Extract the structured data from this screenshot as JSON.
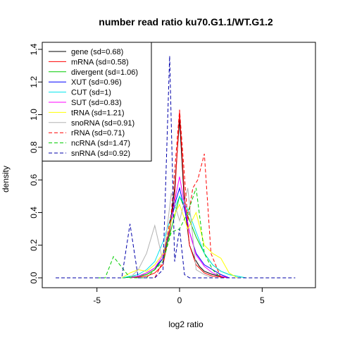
{
  "chart_data": {
    "type": "line",
    "title": "number read ratio ku70.G1.1/WT.G1.2",
    "xlabel": "log2 ratio",
    "ylabel": "density",
    "xlim": [
      -7.5,
      7.5
    ],
    "ylim": [
      0,
      1.4
    ],
    "x_ticks": [
      -5,
      0,
      5
    ],
    "y_ticks": [
      0.0,
      0.2,
      0.4,
      0.6,
      0.8,
      1.0,
      1.2,
      1.4
    ],
    "x_tick_labels": [
      "-5",
      "0",
      "5"
    ],
    "y_tick_labels": [
      "0.0",
      "0.2",
      "0.4",
      "0.6",
      "0.8",
      "1.0",
      "1.2",
      "1.4"
    ],
    "grid": false,
    "legend_position": "top-left",
    "series": [
      {
        "name": "gene (sd=0.68)",
        "color": "#000000",
        "dash": "solid",
        "x": [
          -3.4,
          -2.5,
          -2.0,
          -1.5,
          -1.0,
          -0.6,
          -0.3,
          0.0,
          0.3,
          0.6,
          0.9,
          1.2,
          1.5,
          2.0,
          2.5,
          3.0
        ],
        "y": [
          0.0,
          0.01,
          0.02,
          0.05,
          0.12,
          0.3,
          0.55,
          0.97,
          0.45,
          0.2,
          0.12,
          0.07,
          0.04,
          0.02,
          0.01,
          0.0
        ]
      },
      {
        "name": "mRNA (sd=0.58)",
        "color": "#ff0000",
        "dash": "solid",
        "x": [
          -3.0,
          -2.0,
          -1.5,
          -1.0,
          -0.6,
          -0.3,
          0.0,
          0.3,
          0.6,
          1.0,
          1.5,
          2.0,
          2.5,
          3.0
        ],
        "y": [
          0.0,
          0.01,
          0.03,
          0.08,
          0.28,
          0.5,
          1.02,
          0.5,
          0.2,
          0.08,
          0.03,
          0.01,
          0.005,
          0.0
        ]
      },
      {
        "name": "divergent (sd=1.06)",
        "color": "#00cc00",
        "dash": "solid",
        "x": [
          -3.5,
          -2.5,
          -2.0,
          -1.5,
          -1.0,
          -0.5,
          0.0,
          0.5,
          1.0,
          1.5,
          2.0,
          2.5,
          3.0,
          3.5,
          4.0
        ],
        "y": [
          0.0,
          0.01,
          0.02,
          0.05,
          0.12,
          0.3,
          0.5,
          0.38,
          0.25,
          0.15,
          0.08,
          0.04,
          0.02,
          0.01,
          0.0
        ]
      },
      {
        "name": "XUT (sd=0.96)",
        "color": "#0000ff",
        "dash": "solid",
        "x": [
          -3.0,
          -2.5,
          -2.0,
          -1.5,
          -1.0,
          -0.6,
          -0.3,
          0.0,
          0.3,
          0.6,
          1.0,
          1.5,
          2.0,
          2.5,
          3.0
        ],
        "y": [
          0.0,
          0.01,
          0.03,
          0.06,
          0.12,
          0.3,
          0.45,
          0.55,
          0.42,
          0.28,
          0.15,
          0.08,
          0.05,
          0.02,
          0.0
        ]
      },
      {
        "name": "CUT (sd=1)",
        "color": "#00e5ee",
        "dash": "solid",
        "x": [
          -3.5,
          -3.0,
          -2.5,
          -2.0,
          -1.5,
          -1.0,
          -0.5,
          0.0,
          0.5,
          1.0,
          1.5,
          2.0,
          2.5,
          3.0,
          3.5,
          4.0
        ],
        "y": [
          0.0,
          0.01,
          0.02,
          0.05,
          0.1,
          0.22,
          0.38,
          0.5,
          0.42,
          0.28,
          0.15,
          0.08,
          0.04,
          0.02,
          0.01,
          0.0
        ]
      },
      {
        "name": "SUT (sd=0.83)",
        "color": "#ff00ff",
        "dash": "solid",
        "x": [
          -3.0,
          -2.5,
          -2.0,
          -1.5,
          -1.0,
          -0.5,
          -0.2,
          0.0,
          0.3,
          0.6,
          1.0,
          1.5,
          2.0,
          2.5,
          3.0
        ],
        "y": [
          0.0,
          0.01,
          0.03,
          0.06,
          0.14,
          0.35,
          0.52,
          0.62,
          0.45,
          0.28,
          0.14,
          0.07,
          0.03,
          0.01,
          0.0
        ]
      },
      {
        "name": "tRNA (sd=1.21)",
        "color": "#ffff00",
        "dash": "solid",
        "x": [
          -3.5,
          -3.0,
          -2.5,
          -2.0,
          -1.5,
          -1.0,
          -0.5,
          0.0,
          0.5,
          1.0,
          1.5,
          2.0,
          2.5,
          3.0,
          3.5
        ],
        "y": [
          0.0,
          0.03,
          0.05,
          0.04,
          0.08,
          0.15,
          0.35,
          0.45,
          0.3,
          0.4,
          0.2,
          0.15,
          0.12,
          0.03,
          0.0
        ]
      },
      {
        "name": "snoRNA (sd=0.91)",
        "color": "#b3b3b3",
        "dash": "solid",
        "x": [
          -3.0,
          -2.5,
          -2.0,
          -1.5,
          -1.0,
          -0.5,
          0.0,
          0.5,
          1.0,
          1.5,
          2.0
        ],
        "y": [
          0.0,
          0.05,
          0.15,
          0.32,
          0.1,
          0.52,
          0.35,
          0.55,
          0.05,
          0.02,
          0.0
        ]
      },
      {
        "name": "rRNA (sd=0.71)",
        "color": "#ff0000",
        "dash": "dashed",
        "x": [
          -2.5,
          -1.5,
          -1.0,
          -0.5,
          0.0,
          0.5,
          0.8,
          1.1,
          1.5,
          1.9,
          2.5
        ],
        "y": [
          0.0,
          0.0,
          0.1,
          0.4,
          1.03,
          0.35,
          0.55,
          0.6,
          0.76,
          0.15,
          0.0
        ]
      },
      {
        "name": "ncRNA (sd=1.47)",
        "color": "#00cc00",
        "dash": "dashed",
        "x": [
          -5.0,
          -4.5,
          -4.0,
          -3.0,
          -2.0,
          -1.0,
          -0.5,
          0.0,
          0.5,
          1.0,
          1.5,
          2.0,
          2.5
        ],
        "y": [
          0.0,
          0.0,
          0.13,
          0.0,
          0.0,
          0.1,
          0.28,
          0.3,
          0.4,
          0.55,
          0.15,
          0.05,
          0.0
        ]
      },
      {
        "name": "snRNA (sd=0.92)",
        "color": "#0000aa",
        "dash": "dashed",
        "x": [
          -7.5,
          -5.0,
          -3.5,
          -3.0,
          -2.5,
          -1.5,
          -1.0,
          -0.6,
          -0.3,
          0.0,
          0.3,
          0.6,
          1.0,
          1.5,
          2.5,
          5.0,
          7.0
        ],
        "y": [
          0.0,
          0.0,
          0.0,
          0.33,
          0.0,
          0.0,
          0.05,
          1.36,
          0.1,
          0.3,
          0.02,
          0.0,
          0.0,
          0.0,
          0.0,
          0.0,
          0.0
        ]
      }
    ]
  }
}
